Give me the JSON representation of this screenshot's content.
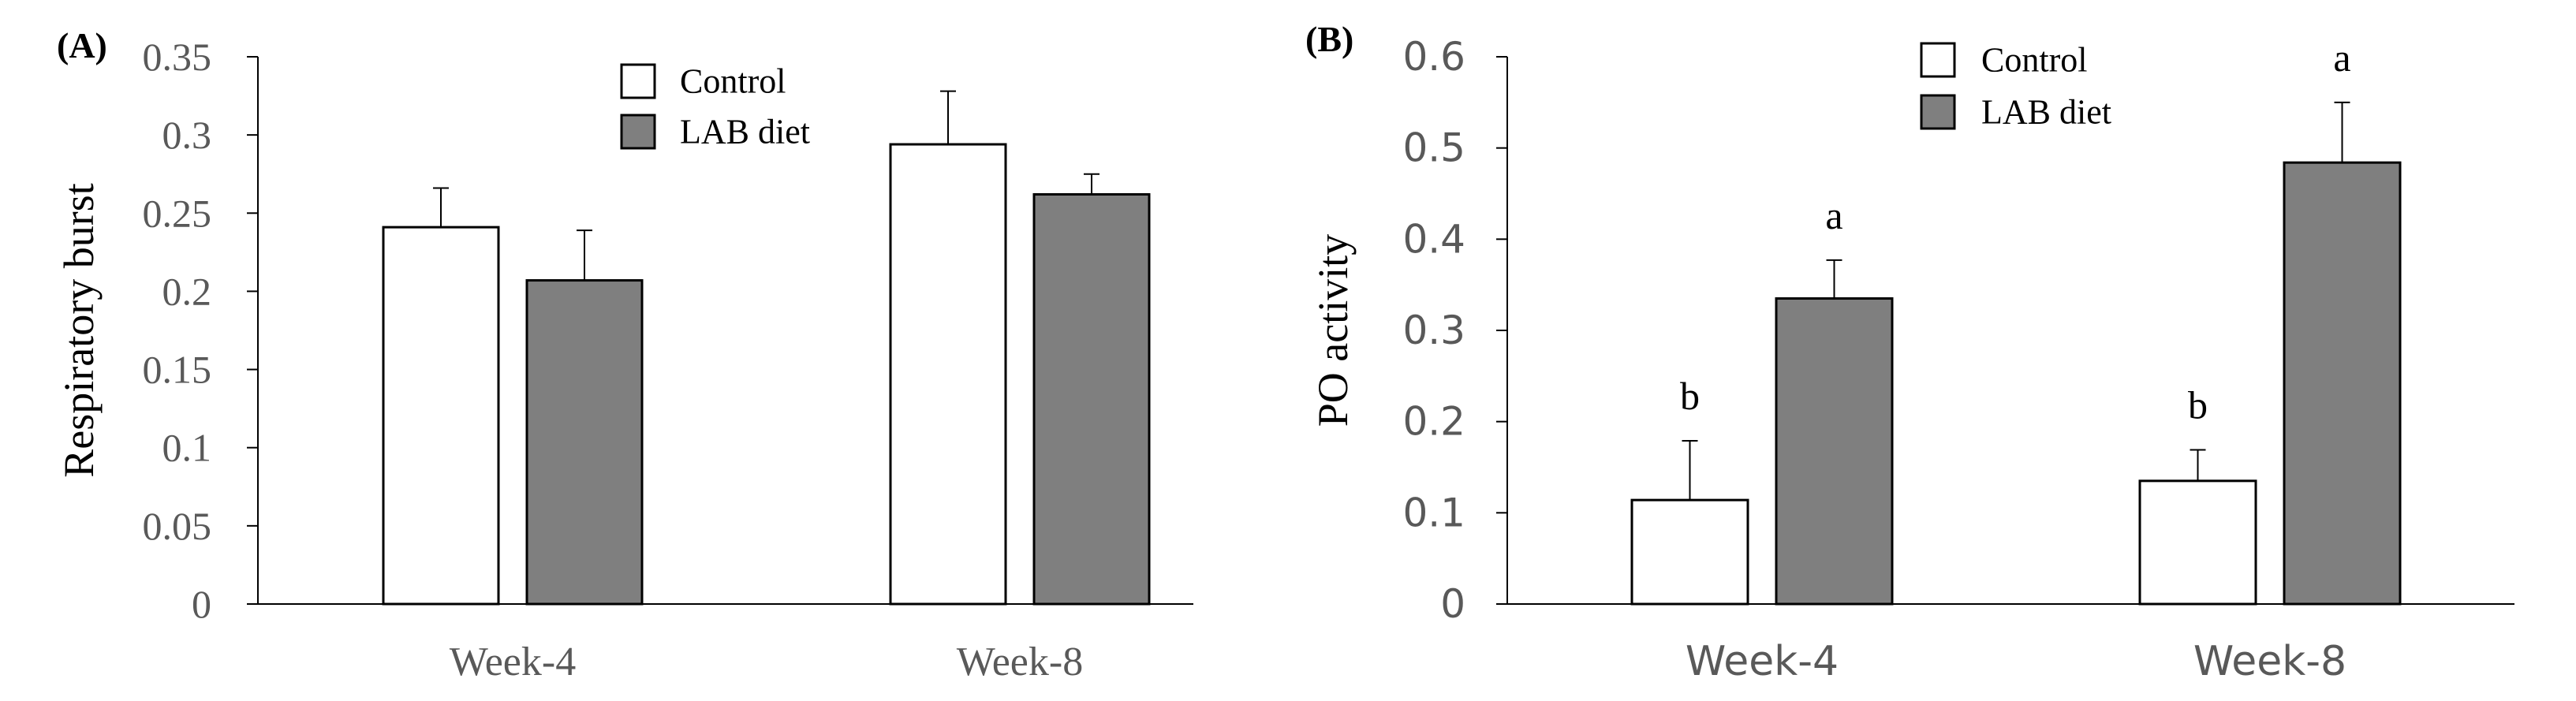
{
  "chart_data": [
    {
      "panel_label": "(A)",
      "type": "bar",
      "ylabel": "Respiratory burst",
      "xlabel": "",
      "ylim": [
        0,
        0.35
      ],
      "yticks": [
        "0",
        "0.05",
        "0.1",
        "0.15",
        "0.2",
        "0.25",
        "0.3",
        "0.35"
      ],
      "categories": [
        "Week-4",
        "Week-8"
      ],
      "series": [
        {
          "name": "Control",
          "color": "#ffffff",
          "values": [
            0.241,
            0.294
          ],
          "errors": [
            0.025,
            0.034
          ],
          "labels": [
            "",
            ""
          ]
        },
        {
          "name": "LAB diet",
          "color": "#7f7f7f",
          "values": [
            0.207,
            0.262
          ],
          "errors": [
            0.032,
            0.013
          ],
          "labels": [
            "",
            ""
          ]
        }
      ],
      "legend": "top-center"
    },
    {
      "panel_label": "(B)",
      "type": "bar",
      "ylabel": "PO activity",
      "xlabel": "",
      "ylim": [
        0,
        0.6
      ],
      "yticks": [
        "0",
        "0.1",
        "0.2",
        "0.3",
        "0.4",
        "0.5",
        "0.6"
      ],
      "categories": [
        "Week-4",
        "Week-8"
      ],
      "series": [
        {
          "name": "Control",
          "color": "#ffffff",
          "values": [
            0.114,
            0.135
          ],
          "errors": [
            0.065,
            0.034
          ],
          "labels": [
            "b",
            "b"
          ]
        },
        {
          "name": "LAB diet",
          "color": "#7f7f7f",
          "values": [
            0.335,
            0.484
          ],
          "errors": [
            0.042,
            0.066
          ],
          "labels": [
            "a",
            "a"
          ]
        }
      ],
      "legend": "top-center"
    }
  ]
}
